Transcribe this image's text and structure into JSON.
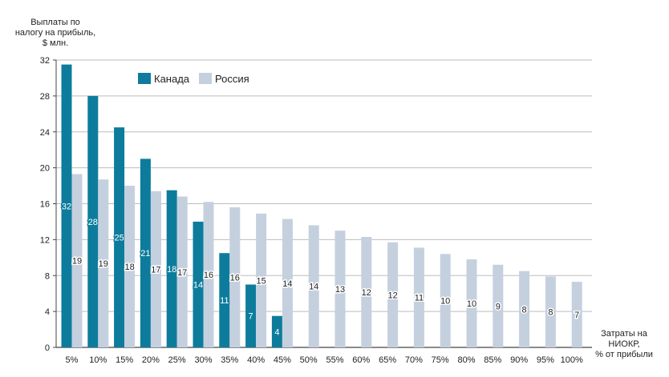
{
  "chart_data": {
    "type": "bar",
    "ylabel": "Выплаты по\nналогу на прибыль,\n$ млн.",
    "xlabel": "Затраты на\nНИОКР,\n% от прибыли",
    "ylim": [
      0,
      32
    ],
    "yticks": [
      0,
      4,
      8,
      12,
      16,
      20,
      24,
      28,
      32
    ],
    "grid": true,
    "legend_position": "top-left",
    "categories": [
      "5%",
      "10%",
      "15%",
      "20%",
      "25%",
      "30%",
      "35%",
      "40%",
      "45%",
      "50%",
      "55%",
      "60%",
      "65%",
      "70%",
      "75%",
      "80%",
      "85%",
      "90%",
      "95%",
      "100%"
    ],
    "series": [
      {
        "name": "Канада",
        "color": "#0d7c9c",
        "values": [
          31.5,
          28,
          24.5,
          21,
          17.5,
          14,
          10.5,
          7,
          3.5,
          null,
          null,
          null,
          null,
          null,
          null,
          null,
          null,
          null,
          null,
          null
        ],
        "labels": [
          "32",
          "28",
          "25",
          "21",
          "18",
          "14",
          "11",
          "7",
          "4",
          "",
          "",
          "",
          "",
          "",
          "",
          "",
          "",
          "",
          "",
          ""
        ]
      },
      {
        "name": "Россия",
        "color": "#c5d0df",
        "values": [
          19.3,
          18.7,
          18.0,
          17.4,
          16.8,
          16.2,
          15.6,
          14.9,
          14.3,
          13.6,
          13.0,
          12.3,
          11.7,
          11.1,
          10.4,
          9.8,
          9.2,
          8.5,
          7.9,
          7.3
        ],
        "labels": [
          "19",
          "19",
          "18",
          "17",
          "17",
          "16",
          "16",
          "15",
          "14",
          "14",
          "13",
          "12",
          "12",
          "11",
          "10",
          "10",
          "9",
          "8",
          "8",
          "7"
        ]
      }
    ]
  }
}
